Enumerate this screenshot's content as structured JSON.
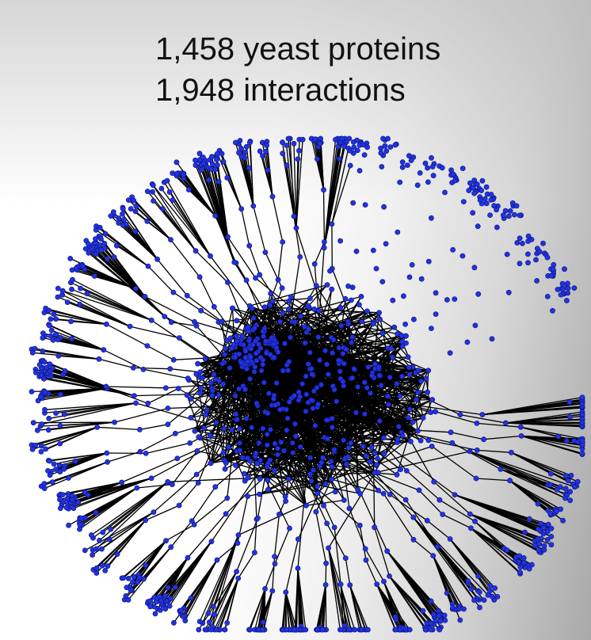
{
  "slide": {
    "title_lines": [
      "1,458 yeast proteins",
      "1,948 interactions"
    ]
  },
  "network": {
    "description": "yeast protein interaction network",
    "node_count": 1458,
    "edge_count": 1948,
    "node_color": "#2233dd",
    "node_stroke": "#0a1280",
    "edge_color": "#000000"
  }
}
